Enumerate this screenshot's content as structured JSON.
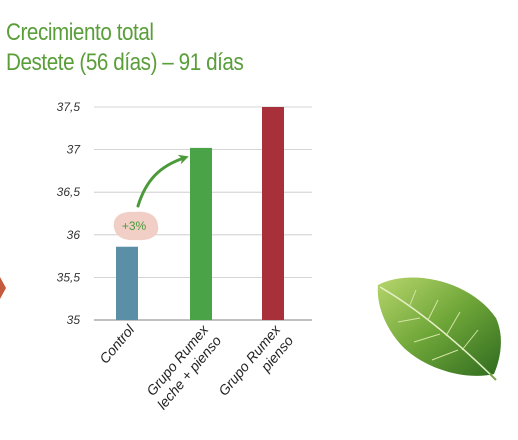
{
  "title_lines": [
    "Crecimiento total",
    "Destete (56 días) – 91 días"
  ],
  "chart_data": {
    "type": "bar",
    "title": "Crecimiento total Destete (56 días) – 91 días",
    "categories": [
      [
        "Control"
      ],
      [
        "Grupo Rumex",
        "leche + pienso"
      ],
      [
        "Grupo Rumex",
        "pienso"
      ]
    ],
    "values": [
      35.86,
      37.02,
      37.5
    ],
    "colors": [
      "#5a8fa7",
      "#4aa447",
      "#a8303a"
    ],
    "ylim": [
      35,
      37.5
    ],
    "yticks": [
      "35",
      "35,5",
      "36",
      "36,5",
      "37",
      "37,5"
    ],
    "grid": true,
    "annotation": {
      "text": "+3%",
      "from": "Control",
      "to": "Grupo Rumex leche + pienso",
      "color": "#4a9a3a",
      "badge_color": "#f2cfc6"
    }
  },
  "decor": {
    "leaf": "mint-leaf-image",
    "left_arrow": "chevron-right-icon"
  }
}
